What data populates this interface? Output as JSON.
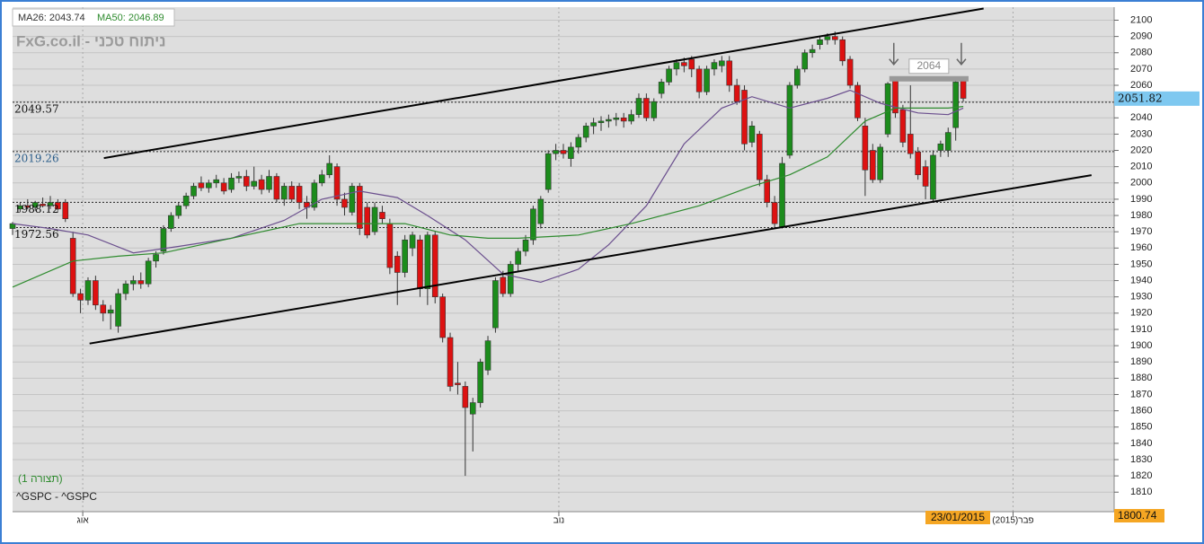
{
  "chart_data": {
    "type": "candlestick",
    "watermark": "FxG.co.il - ניתוח טכני",
    "config_label": "(תצורה 1)",
    "symbol": "^GSPC - ^GSPC",
    "up_color": "#1c8c1c",
    "down_color": "#dd1111",
    "open": [
      1972,
      1984,
      1986,
      1985,
      1987,
      1986,
      1988,
      1988,
      1966,
      1932,
      1928,
      1940,
      1925,
      1920,
      1912,
      1932,
      1938,
      1940,
      1938,
      1952,
      1958,
      1972,
      1980,
      1986,
      1992,
      2000,
      1997,
      2000,
      2000,
      1996,
      2003,
      2004,
      1998,
      2002,
      1996,
      2004,
      1990,
      1998,
      1998,
      1988,
      1985,
      2000,
      2005,
      2010,
      1990,
      1982,
      1998,
      1985,
      1970,
      1982,
      1975,
      1955,
      1945,
      1960,
      1965,
      1935,
      1968,
      1930,
      1905,
      1877,
      1875,
      1858,
      1865,
      1885,
      1911,
      1942,
      1932,
      1950,
      1958,
      1965,
      1975,
      1996,
      2018,
      2020,
      2015,
      2022,
      2028,
      2035,
      2037,
      2038,
      2039,
      2040,
      2038,
      2042,
      2052,
      2040,
      2055,
      2062,
      2070,
      2074,
      2076,
      2070,
      2056,
      2070,
      2072,
      2075,
      2060,
      2057,
      2025,
      2030,
      2002,
      1988,
      1973,
      2017,
      2060,
      2070,
      2080,
      2085,
      2088,
      2090,
      2088,
      2076,
      2060,
      2035,
      2020,
      2002,
      2030,
      2063,
      2045,
      2030,
      2019,
      2010,
      1990,
      2020,
      2020,
      2034,
      2063
    ],
    "high": [
      1976,
      1988,
      1990,
      1989,
      1991,
      1992,
      1990,
      1990,
      1970,
      1935,
      1942,
      1943,
      1928,
      1925,
      1935,
      1940,
      1943,
      1945,
      1954,
      1958,
      1974,
      1982,
      1988,
      1994,
      2000,
      2004,
      2002,
      2005,
      2003,
      2006,
      2007,
      2008,
      2010,
      2005,
      2008,
      2006,
      2000,
      2001,
      2000,
      1992,
      2002,
      2008,
      2017,
      2012,
      1994,
      2000,
      2000,
      1988,
      1988,
      1986,
      1978,
      1958,
      1968,
      1970,
      1968,
      1970,
      1970,
      1932,
      1908,
      1890,
      1878,
      1868,
      1892,
      1906,
      1942,
      1946,
      1952,
      1960,
      1968,
      1986,
      1992,
      2020,
      2024,
      2024,
      2025,
      2030,
      2037,
      2040,
      2041,
      2042,
      2043,
      2043,
      2045,
      2055,
      2055,
      2052,
      2064,
      2072,
      2076,
      2077,
      2078,
      2072,
      2072,
      2076,
      2078,
      2078,
      2064,
      2060,
      2038,
      2032,
      2005,
      1992,
      2016,
      2062,
      2072,
      2082,
      2085,
      2090,
      2092,
      2093,
      2090,
      2078,
      2062,
      2040,
      2024,
      2024,
      2062,
      2065,
      2048,
      2060,
      2022,
      2014,
      2020,
      2026,
      2034,
      2064,
      2065
    ],
    "low": [
      1968,
      1982,
      1984,
      1983,
      1985,
      1984,
      1983,
      1976,
      1930,
      1920,
      1925,
      1922,
      1915,
      1910,
      1908,
      1928,
      1934,
      1935,
      1936,
      1948,
      1956,
      1970,
      1978,
      1984,
      1990,
      1995,
      1994,
      1997,
      1993,
      1994,
      2000,
      1995,
      1996,
      1993,
      1994,
      1988,
      1986,
      1988,
      1984,
      1978,
      1983,
      1998,
      2003,
      1986,
      1980,
      1980,
      1968,
      1966,
      1968,
      1975,
      1944,
      1925,
      1942,
      1955,
      1930,
      1925,
      1926,
      1902,
      1872,
      1870,
      1820,
      1835,
      1862,
      1882,
      1908,
      1930,
      1930,
      1946,
      1955,
      1962,
      1972,
      1994,
      2014,
      2015,
      2010,
      2018,
      2025,
      2030,
      2032,
      2034,
      2035,
      2034,
      2036,
      2040,
      2038,
      2038,
      2052,
      2060,
      2066,
      2068,
      2065,
      2052,
      2054,
      2066,
      2068,
      2056,
      2048,
      2020,
      2022,
      1998,
      1985,
      1972,
      1972,
      2015,
      2058,
      2068,
      2077,
      2082,
      2085,
      2085,
      2072,
      2058,
      2038,
      1992,
      2000,
      2000,
      2028,
      2040,
      2022,
      2015,
      2002,
      1990,
      1988,
      2016,
      2016,
      2026,
      2050
    ],
    "close": [
      1975,
      1986,
      1985,
      1988,
      1986,
      1988,
      1984,
      1978,
      1932,
      1928,
      1940,
      1925,
      1920,
      1922,
      1932,
      1938,
      1940,
      1938,
      1952,
      1956,
      1972,
      1980,
      1986,
      1992,
      1998,
      1997,
      2000,
      2002,
      1995,
      2003,
      2004,
      1998,
      2001,
      1996,
      2004,
      1990,
      1998,
      1990,
      1988,
      1985,
      2000,
      2005,
      2012,
      1990,
      1985,
      1998,
      1972,
      1968,
      1985,
      1978,
      1948,
      1945,
      1965,
      1968,
      1935,
      1968,
      1930,
      1905,
      1875,
      1876,
      1862,
      1865,
      1890,
      1903,
      1940,
      1932,
      1950,
      1958,
      1965,
      1984,
      1990,
      2018,
      2020,
      2018,
      2022,
      2028,
      2035,
      2037,
      2038,
      2039,
      2040,
      2038,
      2042,
      2052,
      2040,
      2050,
      2062,
      2070,
      2074,
      2072,
      2070,
      2056,
      2070,
      2074,
      2075,
      2060,
      2050,
      2024,
      2035,
      2002,
      1988,
      1975,
      2012,
      2060,
      2070,
      2080,
      2082,
      2088,
      2090,
      2088,
      2075,
      2060,
      2040,
      2008,
      2002,
      2022,
      2061,
      2043,
      2025,
      2018,
      2005,
      1998,
      2017,
      2024,
      2031,
      2062,
      2052
    ],
    "series": [
      {
        "name": "MA26: 2043.74",
        "color": "#6b4f8e",
        "x": [
          0,
          5,
          10,
          16,
          22,
          29,
          36,
          41,
          46,
          51,
          55,
          60,
          65,
          70,
          75,
          79,
          84,
          89,
          94,
          98,
          103,
          108,
          111,
          115,
          120,
          124,
          126
        ],
        "values": [
          1975,
          1972,
          1968,
          1957,
          1961,
          1966,
          1977,
          1990,
          1995,
          1991,
          1980,
          1965,
          1944,
          1939,
          1947,
          1962,
          1986,
          2024,
          2046,
          2053,
          2046,
          2052,
          2057,
          2049,
          2043,
          2042,
          2046
        ]
      },
      {
        "name": "MA50: 2046.89",
        "color": "#2e8b2e",
        "x": [
          0,
          8,
          14,
          20,
          29,
          38,
          46,
          52,
          58,
          63,
          67,
          75,
          82,
          91,
          98,
          103,
          108,
          113,
          117,
          124,
          126
        ],
        "values": [
          1936,
          1952,
          1955,
          1957,
          1966,
          1975,
          1975,
          1975,
          1968,
          1966,
          1966,
          1968,
          1975,
          1986,
          1998,
          2005,
          2016,
          2038,
          2046,
          2046,
          2047
        ]
      }
    ],
    "trendlines": [
      {
        "x": [
          12.1,
          128.7
        ],
        "values": [
          2015.3,
          2107.2
        ]
      },
      {
        "x": [
          10.2,
          143
        ],
        "values": [
          1901.3,
          2004.8
        ]
      }
    ],
    "levels": [
      2049.57,
      2019.26,
      1988.12,
      1972.56
    ],
    "resistance": {
      "x": [
        116.2,
        126.7
      ],
      "value": 2064
    },
    "last_price": 2051.82,
    "cursor_value": 1800.74,
    "cursor_date": "23/01/2015",
    "xlim": [
      0,
      146
    ],
    "xticks": [
      {
        "value": 9.3,
        "label": "אוג"
      },
      {
        "value": 72.4,
        "label": "נוב"
      },
      {
        "value": 132.6,
        "label": "פבר(2015)"
      }
    ],
    "ylim": [
      1798,
      2108
    ],
    "yticks": [
      1810,
      1820,
      1830,
      1840,
      1850,
      1860,
      1870,
      1880,
      1890,
      1900,
      1910,
      1920,
      1930,
      1940,
      1950,
      1960,
      1970,
      1980,
      1990,
      2000,
      2010,
      2020,
      2030,
      2040,
      2050,
      2060,
      2070,
      2080,
      2090,
      2100
    ],
    "grid": true
  }
}
